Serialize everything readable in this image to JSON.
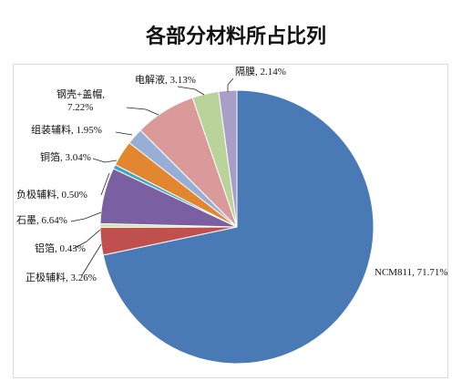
{
  "chart_data": {
    "type": "pie",
    "title": "各部分材料所占比列",
    "slices": [
      {
        "label": "NCM811",
        "display": "NCM811, 71.71%",
        "value": 71.71,
        "color": "#4a7ab5"
      },
      {
        "label": "正极辅料",
        "display": "正极辅料, 3.26%",
        "value": 3.26,
        "color": "#c0504d"
      },
      {
        "label": "铝箔",
        "display": "铝箔, 0.43%",
        "value": 0.43,
        "color": "#d4e1a4"
      },
      {
        "label": "石墨",
        "display": "石墨, 6.64%",
        "value": 6.64,
        "color": "#7b5fa3"
      },
      {
        "label": "负极辅料",
        "display": "负极辅料, 0.50%",
        "value": 0.5,
        "color": "#3fa5c4"
      },
      {
        "label": "铜箔",
        "display": "铜箔, 3.04%",
        "value": 3.04,
        "color": "#e2862f"
      },
      {
        "label": "组装辅料",
        "display": "组装辅料, 1.95%",
        "value": 1.95,
        "color": "#97afd6"
      },
      {
        "label": "钢壳+盖帽",
        "display": [
          "钢壳+盖帽,",
          "7.22%"
        ],
        "value": 7.22,
        "color": "#d99a99"
      },
      {
        "label": "电解液",
        "display": "电解液, 3.13%",
        "value": 3.13,
        "color": "#b9d39a"
      },
      {
        "label": "隔膜",
        "display": "隔膜, 2.14%",
        "value": 2.14,
        "color": "#a89ec6"
      }
    ]
  }
}
